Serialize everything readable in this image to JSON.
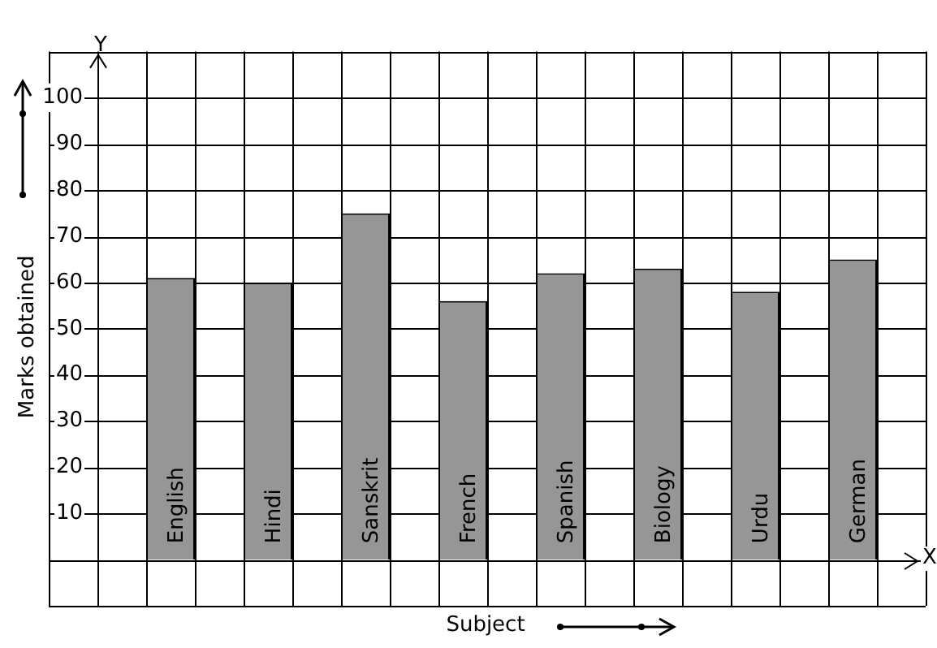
{
  "chart_data": {
    "type": "bar",
    "xlabel": "Subject",
    "ylabel": "Marks obtained",
    "categories": [
      "English",
      "Hindi",
      "Sanskrit",
      "French",
      "Spanish",
      "Biology",
      "Urdu",
      "German"
    ],
    "values": [
      61,
      60,
      75,
      56,
      62,
      63,
      58,
      65
    ],
    "color": "#969696",
    "ylim": [
      -10,
      110
    ],
    "yticks": [
      {
        "value": -10,
        "label": null
      },
      {
        "value": 0,
        "label": null
      },
      10,
      20,
      30,
      40,
      50,
      60,
      70,
      80,
      90,
      100,
      {
        "value": 110,
        "label": null
      }
    ],
    "grid": true,
    "annotations": [
      "Y",
      "X"
    ]
  }
}
